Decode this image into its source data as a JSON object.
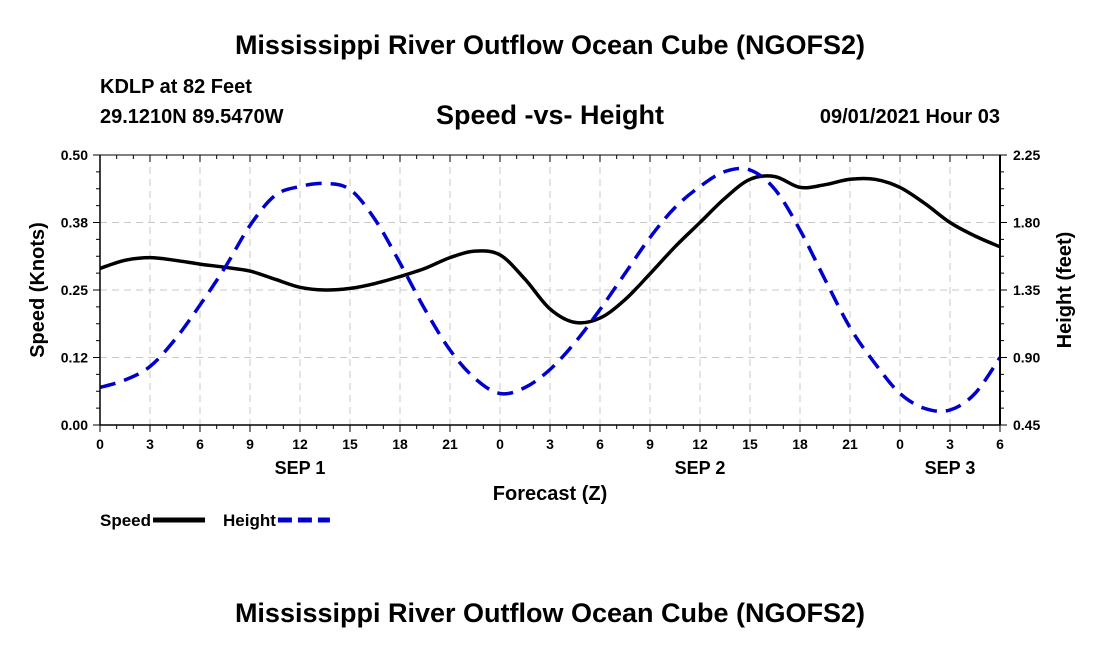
{
  "header": {
    "title_top": "Mississippi River Outflow Ocean Cube (NGOFS2)",
    "title_bottom": "Mississippi River Outflow Ocean Cube (NGOFS2)",
    "station": "KDLP at 82 Feet",
    "coords": "29.1210N  89.5470W",
    "datetime": "09/01/2021 Hour 03"
  },
  "chart_data": {
    "type": "line",
    "title": "Speed -vs- Height",
    "xlabel": "Forecast (Z)",
    "ylabel_left": "Speed (Knots)",
    "ylabel_right": "Height (feet)",
    "x_range": [
      0,
      54
    ],
    "x_unit": "hours from 09/01/2021 00Z",
    "xtick_labels": [
      "0",
      "3",
      "6",
      "9",
      "12",
      "15",
      "18",
      "21",
      "0",
      "3",
      "6",
      "9",
      "12",
      "15",
      "18",
      "21",
      "0",
      "3",
      "6"
    ],
    "day_labels": [
      {
        "label": "SEP 1",
        "x": 12
      },
      {
        "label": "SEP 2",
        "x": 36
      },
      {
        "label": "SEP 3",
        "x": 51
      }
    ],
    "y_left": {
      "range": [
        0,
        0.5
      ],
      "ticks": [
        "0.00",
        "0.12",
        "0.25",
        "0.38",
        "0.50"
      ]
    },
    "y_right": {
      "range": [
        0.45,
        2.25
      ],
      "ticks": [
        "0.45",
        "0.90",
        "1.35",
        "1.80",
        "2.25"
      ]
    },
    "grid": true,
    "legend_position": "bottom-left",
    "series": [
      {
        "name": "Speed",
        "axis": "left",
        "color": "#000000",
        "dash": false,
        "x": [
          0,
          1.5,
          3,
          4.5,
          6,
          7.5,
          9,
          10.5,
          12,
          13.5,
          15,
          16.5,
          18,
          19.5,
          21,
          22.5,
          24,
          25.5,
          27,
          28.5,
          30,
          31.5,
          33,
          34.5,
          36,
          37.5,
          39,
          40.5,
          42,
          43.5,
          45,
          46.5,
          48,
          49.5,
          51,
          52.5,
          54
        ],
        "values": [
          0.29,
          0.305,
          0.31,
          0.305,
          0.298,
          0.292,
          0.285,
          0.27,
          0.255,
          0.25,
          0.253,
          0.262,
          0.275,
          0.29,
          0.31,
          0.322,
          0.315,
          0.27,
          0.215,
          0.19,
          0.198,
          0.232,
          0.28,
          0.33,
          0.375,
          0.42,
          0.455,
          0.46,
          0.44,
          0.445,
          0.455,
          0.455,
          0.44,
          0.41,
          0.375,
          0.35,
          0.33
        ]
      },
      {
        "name": "Height",
        "axis": "right",
        "color": "#0000cc",
        "dash": true,
        "x": [
          0,
          1.5,
          3,
          4.5,
          6,
          7.5,
          9,
          10.5,
          12,
          13.5,
          15,
          16.5,
          18,
          19.5,
          21,
          22.5,
          24,
          25.5,
          27,
          28.5,
          30,
          31.5,
          33,
          34.5,
          36,
          37.5,
          39,
          40.5,
          42,
          43.5,
          45,
          46.5,
          48,
          49.5,
          51,
          52.5,
          54
        ],
        "values": [
          0.7,
          0.75,
          0.84,
          1.02,
          1.25,
          1.5,
          1.78,
          1.98,
          2.04,
          2.06,
          2.02,
          1.82,
          1.53,
          1.22,
          0.95,
          0.76,
          0.66,
          0.7,
          0.82,
          1.0,
          1.22,
          1.46,
          1.7,
          1.9,
          2.04,
          2.14,
          2.15,
          2.02,
          1.75,
          1.42,
          1.1,
          0.86,
          0.66,
          0.56,
          0.55,
          0.66,
          0.9
        ]
      }
    ]
  }
}
